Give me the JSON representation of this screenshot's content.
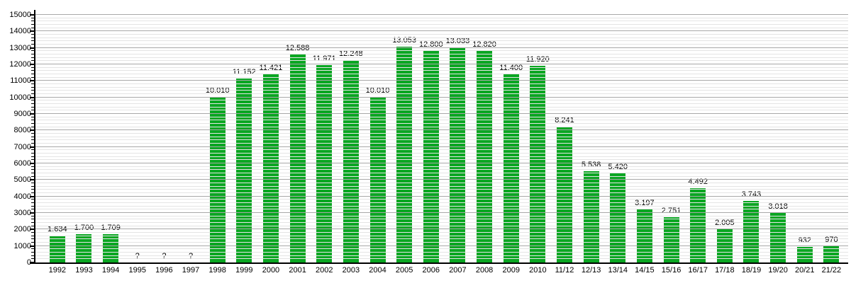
{
  "chart_data": {
    "type": "bar",
    "title": "",
    "xlabel": "",
    "ylabel": "",
    "categories": [
      "1992",
      "1993",
      "1994",
      "1995",
      "1996",
      "1997",
      "1998",
      "1999",
      "2000",
      "2001",
      "2002",
      "2003",
      "2004",
      "2005",
      "2006",
      "2007",
      "2008",
      "2009",
      "2010",
      "11/12",
      "12/13",
      "13/14",
      "14/15",
      "15/16",
      "16/17",
      "17/18",
      "18/19",
      "19/20",
      "20/21",
      "21/22"
    ],
    "values": [
      1634,
      1700,
      1709,
      null,
      null,
      null,
      10010,
      11152,
      11421,
      12588,
      11971,
      12248,
      10010,
      13053,
      12800,
      13033,
      12820,
      11400,
      11920,
      8241,
      5538,
      5420,
      3197,
      2751,
      4492,
      2005,
      3743,
      3018,
      932,
      970
    ],
    "value_labels": [
      "1.634",
      "1.700",
      "1.709",
      "?",
      "?",
      "?",
      "10.010",
      "11.152",
      "11.421",
      "12.588",
      "11.971",
      "12.248",
      "10.010",
      "13.053",
      "12.800",
      "13.033",
      "12.820",
      "11.400",
      "11.920",
      "8.241",
      "5.538",
      "5.420",
      "3.197",
      "2.751",
      "4.492",
      "2.005",
      "3.743",
      "3.018",
      "932",
      "970"
    ],
    "missing_marker": "?",
    "ylim": [
      0,
      15000
    ],
    "y_major_step": 1000,
    "y_minor_step": 200,
    "ytick_labels": [
      "0",
      "1000",
      "2000",
      "3000",
      "4000",
      "5000",
      "6000",
      "7000",
      "8000",
      "9000",
      "10000",
      "11000",
      "12000",
      "13000",
      "14000",
      "15000"
    ],
    "grid": true,
    "legend_position": "none",
    "colors": {
      "bar": "#0aa622",
      "grid_major": "#a8a8a8",
      "grid_minor": "#e4e4e4",
      "axis": "#000000",
      "text": "#000000",
      "background": "#ffffff"
    }
  }
}
